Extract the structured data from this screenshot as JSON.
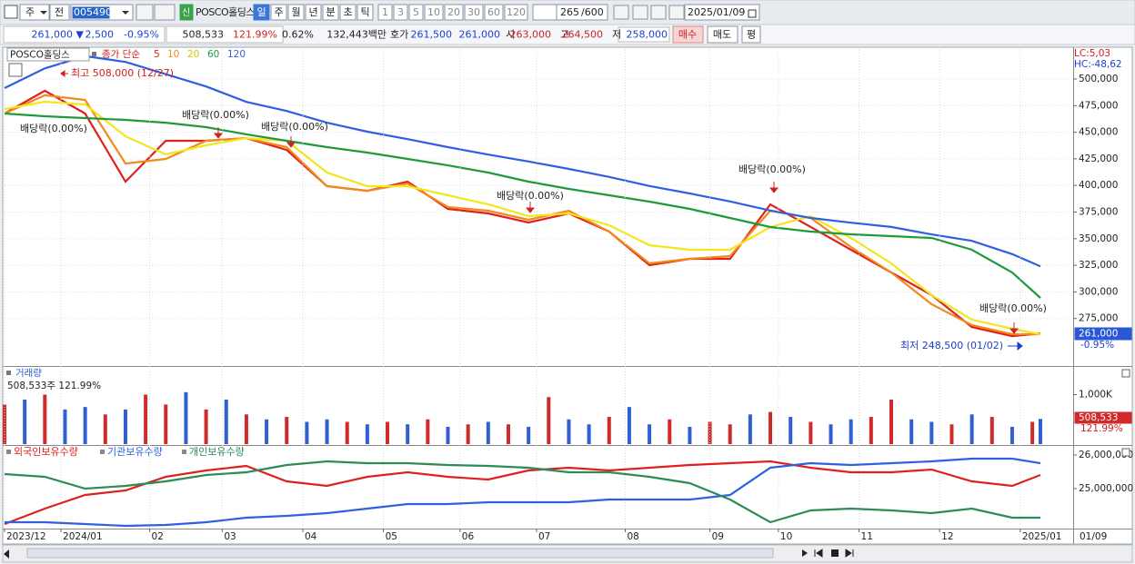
{
  "toolbar": {
    "market": "주",
    "kind": "전",
    "code": "005490",
    "new": "신",
    "name": "POSCO홀딩스",
    "periods": [
      "일",
      "주",
      "월",
      "년",
      "분",
      "초",
      "틱"
    ],
    "numbers": [
      "1",
      "3",
      "5",
      "10",
      "20",
      "30",
      "60",
      "120"
    ],
    "count": "265",
    "total": "/600",
    "date": "2025/01/09"
  },
  "info_bar": {
    "price": "261,000 ▼",
    "change": "2,500",
    "rate": "-0.95%",
    "volume": "508,533",
    "volume_rate": "121.99%",
    "turnover": "0.62%",
    "amount": "132,443백만",
    "ask_label": "호가",
    "ask": "261,500",
    "bid": "261,000",
    "open_label": "시",
    "open": "263,000",
    "high_label": "고",
    "high": "264,500",
    "low_label": "저",
    "low": "258,000",
    "buy": "매수",
    "sell": "매도",
    "avg": "평"
  },
  "chart_data": [
    {
      "type": "line",
      "title": "POSCO홀딩스",
      "legend_title": "종가 단순",
      "right_top": [
        "LC:5,03",
        "HC:-48,62"
      ],
      "current_label": "261,000",
      "current_rate": "-0.95%",
      "x": [
        0,
        10,
        20,
        30,
        40,
        50,
        60,
        70,
        80,
        90,
        100,
        110,
        120,
        130,
        140,
        150,
        160,
        170,
        180,
        190,
        200,
        210,
        220,
        230,
        240,
        250,
        257
      ],
      "xlim": [
        0,
        264
      ],
      "ylim": [
        230400,
        527300
      ],
      "yticks": [
        {
          "value": 275000,
          "label": "275,000"
        },
        {
          "value": 300000,
          "label": "300,000"
        },
        {
          "value": 325000,
          "label": "325,000"
        },
        {
          "value": 350000,
          "label": "350,000"
        },
        {
          "value": 375000,
          "label": "375,000"
        },
        {
          "value": 400000,
          "label": "400,000"
        },
        {
          "value": 425000,
          "label": "425,000"
        },
        {
          "value": 450000,
          "label": "450,000"
        },
        {
          "value": 475000,
          "label": "475,000"
        },
        {
          "value": 500000,
          "label": "500,000"
        }
      ],
      "grid": true,
      "series": [
        {
          "name": "5",
          "color": "#e0201b",
          "values": [
            467600,
            489000,
            467600,
            403600,
            442000,
            442000,
            444500,
            433400,
            399300,
            395000,
            403600,
            378000,
            373700,
            365200,
            373700,
            356700,
            325100,
            331100,
            331100,
            382300,
            361000,
            339600,
            318300,
            297000,
            267000,
            258500,
            261000
          ]
        },
        {
          "name": "10",
          "color": "#f08a1a",
          "values": [
            467600,
            484700,
            480400,
            420600,
            424900,
            442000,
            444500,
            436000,
            399300,
            395000,
            401900,
            379700,
            376300,
            367800,
            376300,
            356700,
            326800,
            331100,
            333600,
            376300,
            369500,
            342200,
            318300,
            288400,
            268800,
            260300,
            260300
          ]
        },
        {
          "name": "20",
          "color": "#f2e61c",
          "values": [
            471800,
            478700,
            476100,
            446200,
            429200,
            437700,
            444500,
            442000,
            412100,
            399300,
            399300,
            390800,
            382300,
            371200,
            373700,
            362600,
            343900,
            339600,
            339600,
            360900,
            371200,
            350700,
            326800,
            297000,
            274000,
            265400,
            260300
          ]
        },
        {
          "name": "60",
          "color": "#1f9a3b",
          "values": [
            467600,
            465000,
            463300,
            461600,
            459000,
            454800,
            448000,
            442000,
            436000,
            430900,
            424900,
            418900,
            412100,
            403600,
            396800,
            390800,
            384800,
            378000,
            369500,
            360900,
            356700,
            354100,
            352400,
            350700,
            339600,
            318300,
            294400
          ]
        },
        {
          "name": "120",
          "color": "#2f5fe0",
          "values": [
            491500,
            510000,
            521500,
            516000,
            504500,
            493000,
            478500,
            470000,
            459000,
            450500,
            443500,
            436000,
            429000,
            422500,
            415500,
            408000,
            399500,
            392500,
            385000,
            376500,
            369500,
            365000,
            361000,
            354000,
            348000,
            335500,
            324000
          ]
        }
      ],
      "annotations": [
        "최고 508,000 (12/27)",
        "배당락(0.00%)",
        "배당락(0.00%)",
        "배당락(0.00%)",
        "배당락(0.00%)",
        "배당락(0.00%)",
        "배당락(0.00%)",
        "최저 248,500 (01/02)"
      ]
    },
    {
      "type": "bar",
      "title": "거래량",
      "subtitle": "508,533주 121.99%",
      "current_label": "508,533",
      "current_rate": "121.99%",
      "x": [
        0,
        5,
        10,
        15,
        20,
        25,
        30,
        35,
        40,
        45,
        50,
        55,
        60,
        65,
        70,
        75,
        80,
        85,
        90,
        95,
        100,
        105,
        110,
        115,
        120,
        125,
        130,
        135,
        140,
        145,
        150,
        155,
        160,
        165,
        170,
        175,
        180,
        185,
        190,
        195,
        200,
        205,
        210,
        215,
        220,
        225,
        230,
        235,
        240,
        245,
        250,
        255,
        257
      ],
      "xlim": [
        0,
        264
      ],
      "ylim": [
        0,
        1560000
      ],
      "yticks": [
        {
          "value": 1000000,
          "label": "1,000K"
        }
      ],
      "values": [
        800000,
        900000,
        1000000,
        700000,
        750000,
        600000,
        700000,
        1000000,
        800000,
        1050000,
        700000,
        900000,
        600000,
        500000,
        550000,
        450000,
        500000,
        450000,
        400000,
        450000,
        400000,
        500000,
        350000,
        400000,
        450000,
        400000,
        350000,
        950000,
        500000,
        400000,
        550000,
        750000,
        400000,
        500000,
        350000,
        450000,
        400000,
        600000,
        650000,
        550000,
        450000,
        400000,
        500000,
        550000,
        900000,
        500000,
        450000,
        400000,
        600000,
        550000,
        350000,
        450000,
        508533
      ],
      "bar_colors": [
        "#d02a2a",
        "#2f5fd0",
        "#d02a2a",
        "#2f5fd0",
        "#2f5fd0",
        "#d02a2a",
        "#2f5fd0",
        "#d02a2a",
        "#d02a2a",
        "#2f5fd0",
        "#d02a2a",
        "#2f5fd0",
        "#d02a2a",
        "#2f5fd0",
        "#d02a2a",
        "#2f5fd0",
        "#2f5fd0",
        "#d02a2a",
        "#2f5fd0",
        "#d02a2a",
        "#2f5fd0",
        "#d02a2a",
        "#2f5fd0",
        "#d02a2a",
        "#2f5fd0",
        "#d02a2a",
        "#2f5fd0",
        "#d02a2a",
        "#2f5fd0",
        "#2f5fd0",
        "#d02a2a",
        "#2f5fd0",
        "#2f5fd0",
        "#d02a2a",
        "#2f5fd0",
        "#d02a2a",
        "#d02a2a",
        "#2f5fd0",
        "#d02a2a",
        "#2f5fd0",
        "#d02a2a",
        "#2f5fd0",
        "#2f5fd0",
        "#d02a2a",
        "#d02a2a",
        "#2f5fd0",
        "#2f5fd0",
        "#d02a2a",
        "#2f5fd0",
        "#d02a2a",
        "#2f5fd0",
        "#d02a2a",
        "#2f5fd0"
      ]
    },
    {
      "type": "line",
      "date_label": "01/09",
      "x": [
        0,
        10,
        20,
        30,
        40,
        50,
        60,
        70,
        80,
        90,
        100,
        110,
        120,
        130,
        140,
        150,
        160,
        170,
        180,
        190,
        200,
        210,
        220,
        230,
        240,
        250,
        257
      ],
      "xlim": [
        0,
        264
      ],
      "ylim": [
        23810000,
        26270000
      ],
      "yticks": [
        {
          "value": 25000000,
          "label": "25,000,000"
        },
        {
          "value": 26000000,
          "label": "26,000,000"
        }
      ],
      "xticks": [
        {
          "value": 0,
          "label": "2023/12"
        },
        {
          "value": 14,
          "label": "2024/01"
        },
        {
          "value": 36,
          "label": "02"
        },
        {
          "value": 54,
          "label": "03"
        },
        {
          "value": 74,
          "label": "04"
        },
        {
          "value": 94,
          "label": "05"
        },
        {
          "value": 113,
          "label": "06"
        },
        {
          "value": 132,
          "label": "07"
        },
        {
          "value": 154,
          "label": "08"
        },
        {
          "value": 175,
          "label": "09"
        },
        {
          "value": 192,
          "label": "10"
        },
        {
          "value": 212,
          "label": "11"
        },
        {
          "value": 232,
          "label": "12"
        },
        {
          "value": 252,
          "label": "2025/01"
        }
      ],
      "series": [
        {
          "name": "외국인보유수량",
          "color": "#e02020",
          "values": [
            23946000,
            24405000,
            24811000,
            24946000,
            25351000,
            25541000,
            25676000,
            25216000,
            25081000,
            25351000,
            25486000,
            25351000,
            25270000,
            25541000,
            25622000,
            25541000,
            25622000,
            25703000,
            25757000,
            25811000,
            25622000,
            25486000,
            25486000,
            25568000,
            25216000,
            25081000,
            25405000
          ]
        },
        {
          "name": "기관보유수량",
          "color": "#3060e0",
          "values": [
            24000000,
            24000000,
            23946000,
            23892000,
            23919000,
            24000000,
            24135000,
            24189000,
            24270000,
            24405000,
            24541000,
            24541000,
            24595000,
            24595000,
            24595000,
            24676000,
            24676000,
            24676000,
            24811000,
            25622000,
            25757000,
            25703000,
            25757000,
            25811000,
            25892000,
            25892000,
            25757000
          ]
        },
        {
          "name": "개인보유수량",
          "color": "#2e8b57",
          "values": [
            25432000,
            25351000,
            25000000,
            25081000,
            25216000,
            25405000,
            25486000,
            25703000,
            25811000,
            25757000,
            25757000,
            25703000,
            25676000,
            25622000,
            25486000,
            25486000,
            25351000,
            25162000,
            24676000,
            24000000,
            24351000,
            24405000,
            24351000,
            24270000,
            24405000,
            24135000,
            24135000
          ]
        }
      ]
    }
  ]
}
